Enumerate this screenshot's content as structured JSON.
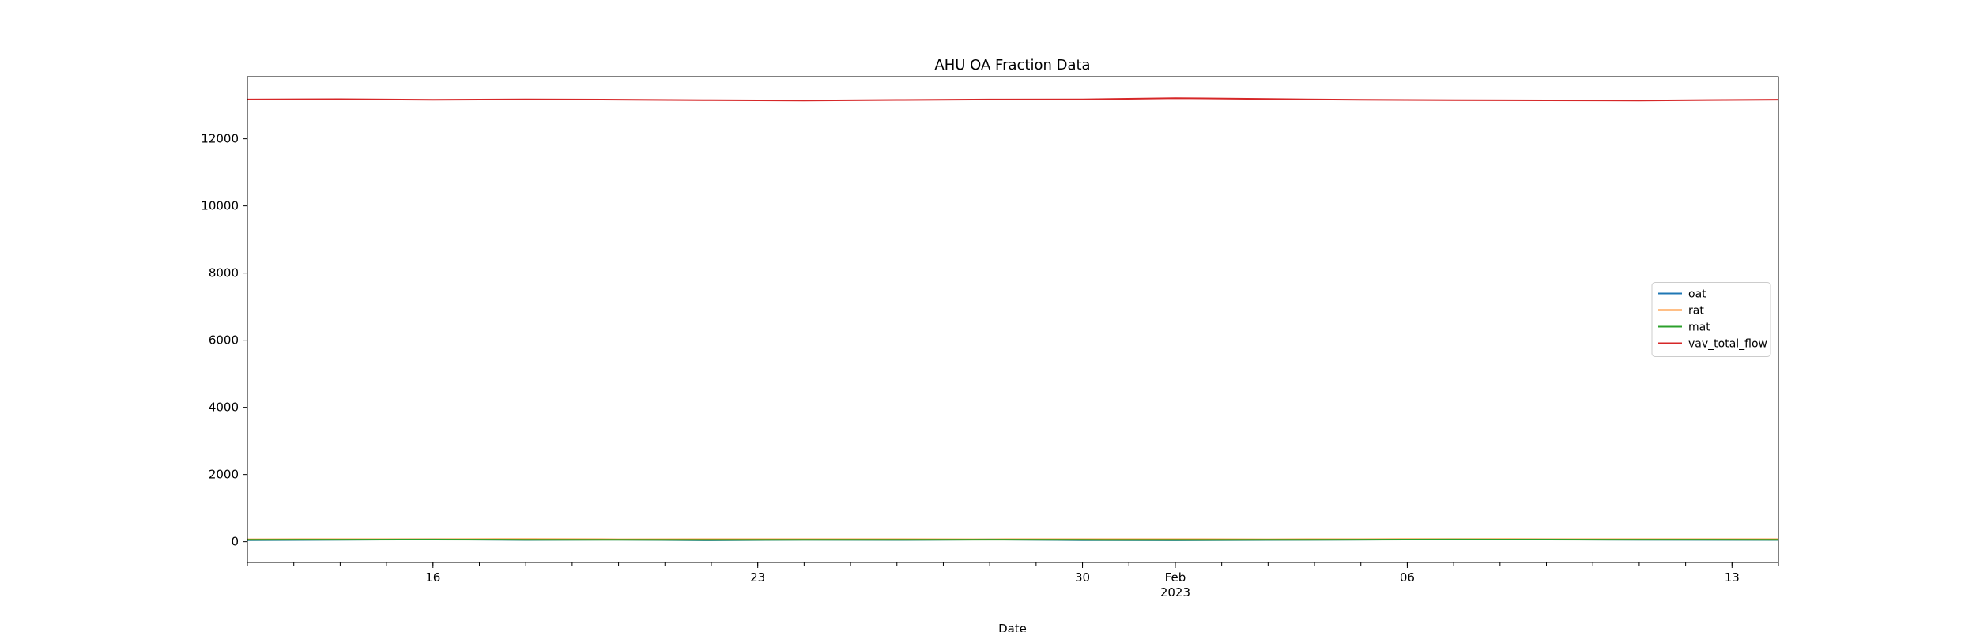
{
  "chart_data": {
    "type": "line",
    "title": "AHU OA Fraction Data",
    "xlabel": "Date",
    "ylabel": "",
    "x_range": [
      "2023-01-12",
      "2023-02-14"
    ],
    "ylim": [
      -620,
      13850
    ],
    "y_ticks": [
      0,
      2000,
      4000,
      6000,
      8000,
      10000,
      12000
    ],
    "x_major_ticks": [
      {
        "date": "2023-01-16",
        "label": "16"
      },
      {
        "date": "2023-01-23",
        "label": "23"
      },
      {
        "date": "2023-01-30",
        "label": "30"
      },
      {
        "date": "2023-02-01",
        "label": "Feb",
        "sublabel": "2023"
      },
      {
        "date": "2023-02-06",
        "label": "06"
      },
      {
        "date": "2023-02-13",
        "label": "13"
      }
    ],
    "legend_position": "center-right",
    "series": [
      {
        "name": "oat",
        "color": "#1f77b4",
        "x": [
          "2023-01-12",
          "2023-01-14",
          "2023-01-16",
          "2023-01-18",
          "2023-01-20",
          "2023-01-22",
          "2023-01-24",
          "2023-01-26",
          "2023-01-28",
          "2023-01-30",
          "2023-02-01",
          "2023-02-03",
          "2023-02-05",
          "2023-02-07",
          "2023-02-09",
          "2023-02-11",
          "2023-02-14"
        ],
        "values": [
          45,
          55,
          70,
          50,
          60,
          40,
          55,
          50,
          65,
          45,
          40,
          50,
          60,
          70,
          65,
          55,
          50
        ]
      },
      {
        "name": "rat",
        "color": "#ff7f0e",
        "x": [
          "2023-01-12",
          "2023-01-14",
          "2023-01-16",
          "2023-01-18",
          "2023-01-20",
          "2023-01-22",
          "2023-01-24",
          "2023-01-26",
          "2023-01-28",
          "2023-01-30",
          "2023-02-01",
          "2023-02-03",
          "2023-02-05",
          "2023-02-07",
          "2023-02-09",
          "2023-02-11",
          "2023-02-14"
        ],
        "values": [
          70,
          72,
          71,
          73,
          70,
          72,
          71,
          72,
          70,
          71,
          72,
          70,
          71,
          73,
          72,
          71,
          72
        ]
      },
      {
        "name": "mat",
        "color": "#2ca02c",
        "x": [
          "2023-01-12",
          "2023-01-14",
          "2023-01-16",
          "2023-01-18",
          "2023-01-20",
          "2023-01-22",
          "2023-01-24",
          "2023-01-26",
          "2023-01-28",
          "2023-01-30",
          "2023-02-01",
          "2023-02-03",
          "2023-02-05",
          "2023-02-07",
          "2023-02-09",
          "2023-02-11",
          "2023-02-14"
        ],
        "values": [
          55,
          60,
          62,
          58,
          56,
          52,
          58,
          57,
          60,
          55,
          52,
          56,
          60,
          64,
          62,
          60,
          58
        ]
      },
      {
        "name": "vav_total_flow",
        "color": "#d62728",
        "x": [
          "2023-01-12",
          "2023-01-14",
          "2023-01-16",
          "2023-01-18",
          "2023-01-20",
          "2023-01-22",
          "2023-01-24",
          "2023-01-26",
          "2023-01-28",
          "2023-01-30",
          "2023-02-01",
          "2023-02-03",
          "2023-02-05",
          "2023-02-07",
          "2023-02-09",
          "2023-02-11",
          "2023-02-14"
        ],
        "values": [
          13170,
          13180,
          13160,
          13175,
          13165,
          13150,
          13140,
          13155,
          13170,
          13175,
          13210,
          13185,
          13160,
          13150,
          13145,
          13140,
          13165
        ]
      }
    ]
  }
}
